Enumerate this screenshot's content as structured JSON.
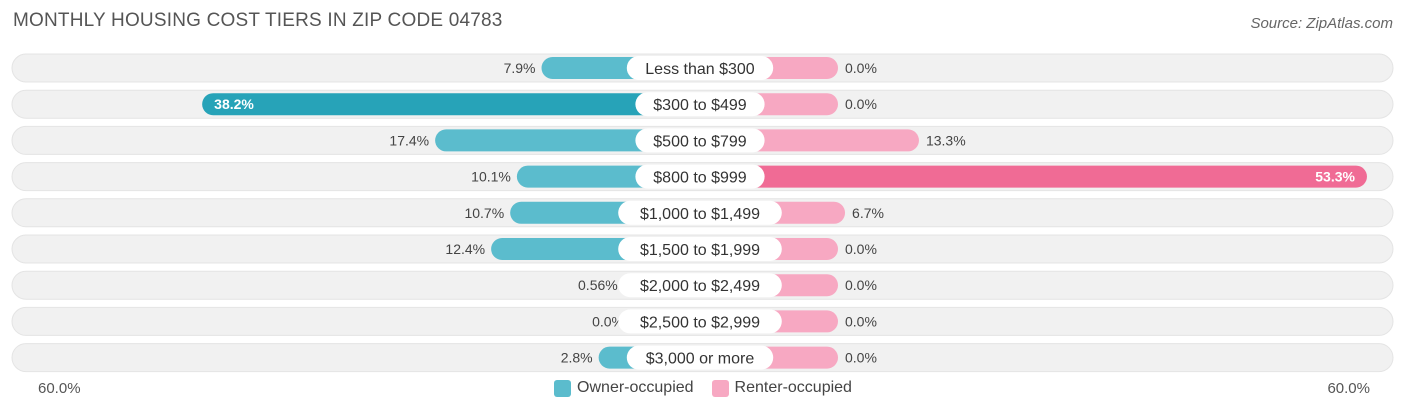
{
  "title": "MONTHLY HOUSING COST TIERS IN ZIP CODE 04783",
  "source": "Source: ZipAtlas.com",
  "colors": {
    "owner": "#5bbccd",
    "owner_strong": "#27a3b8",
    "renter": "#f7a8c2",
    "renter_strong": "#f06b95",
    "track": "#f1f1f1"
  },
  "legend": {
    "owner_label": "Owner-occupied",
    "renter_label": "Renter-occupied"
  },
  "axis": {
    "left_label": "60.0%",
    "right_label": "60.0%"
  },
  "chart_data": {
    "type": "bar",
    "orientation": "diverging-horizontal",
    "xlim": [
      -60,
      60
    ],
    "categories": [
      "Less than $300",
      "$300 to $499",
      "$500 to $799",
      "$800 to $999",
      "$1,000 to $1,499",
      "$1,500 to $1,999",
      "$2,000 to $2,499",
      "$2,500 to $2,999",
      "$3,000 or more"
    ],
    "series": [
      {
        "name": "Owner-occupied",
        "values": [
          7.9,
          38.2,
          17.4,
          10.1,
          10.7,
          12.4,
          0.56,
          0.0,
          2.8
        ],
        "labels": [
          "7.9%",
          "38.2%",
          "17.4%",
          "10.1%",
          "10.7%",
          "12.4%",
          "0.56%",
          "0.0%",
          "2.8%"
        ]
      },
      {
        "name": "Renter-occupied",
        "values": [
          0.0,
          0.0,
          13.3,
          53.3,
          6.7,
          0.0,
          0.0,
          0.0,
          0.0
        ],
        "labels": [
          "0.0%",
          "0.0%",
          "13.3%",
          "53.3%",
          "6.7%",
          "0.0%",
          "0.0%",
          "0.0%",
          "0.0%"
        ]
      }
    ]
  }
}
